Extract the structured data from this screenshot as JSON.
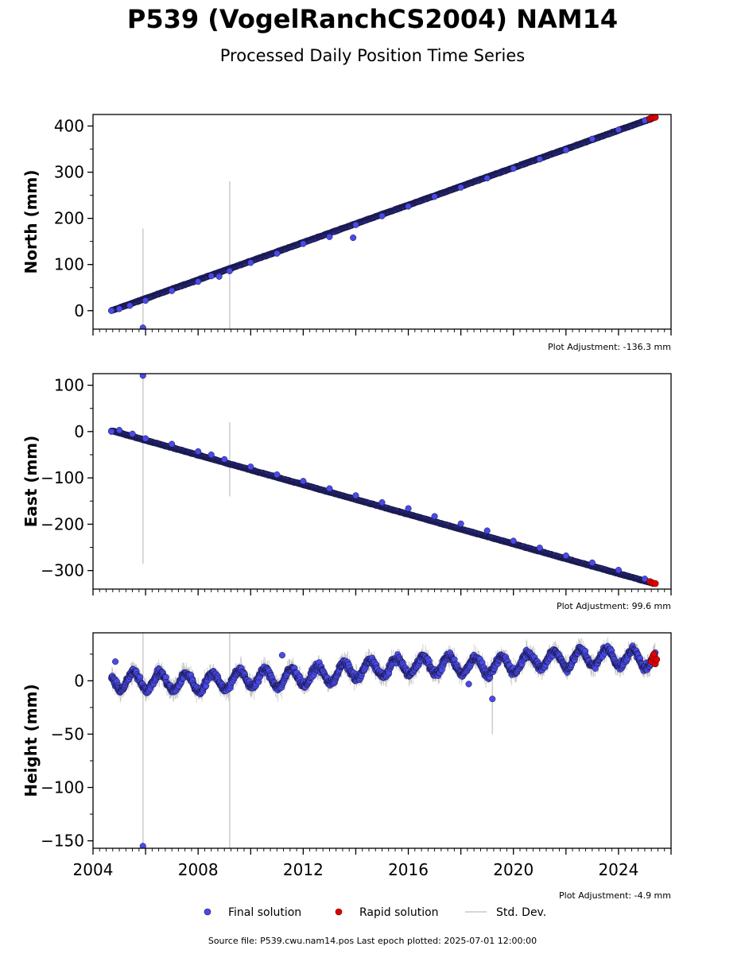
{
  "figure": {
    "title": "P539 (VogelRanchCS2004) NAM14",
    "subtitle": "Processed Daily Position Time Series",
    "source_note": "Source file: P539.cwu.nam14.pos  Last epoch plotted: 2025-07-01 12:00:00"
  },
  "legend": {
    "final": "Final solution",
    "rapid": "Rapid solution",
    "stddev": "Std. Dev."
  },
  "colors": {
    "final": "#4a4ae8",
    "final_edge": "#14143c",
    "rapid": "#e00000",
    "stddev": "#b8b8b8",
    "axis": "#000000"
  },
  "chart_data": [
    {
      "type": "scatter",
      "ylabel": "North (mm)",
      "adjustment": "Plot Adjustment: -136.3 mm",
      "xlim": [
        2004.0,
        2026.0
      ],
      "ylim": [
        -40,
        425
      ],
      "y_ticks": [
        0,
        100,
        200,
        300,
        400
      ],
      "y_tick_labels": [
        "0",
        "100",
        "200",
        "300",
        "400"
      ],
      "trend": {
        "t0": 2004.7,
        "y0": 0,
        "t1": 2025.35,
        "y1": 418
      },
      "final_points": [
        {
          "x": 2004.7,
          "y": 0
        },
        {
          "x": 2005.0,
          "y": 4
        },
        {
          "x": 2005.4,
          "y": 11
        },
        {
          "x": 2005.9,
          "y": -37
        },
        {
          "x": 2006.0,
          "y": 22
        },
        {
          "x": 2007.0,
          "y": 43
        },
        {
          "x": 2008.0,
          "y": 63
        },
        {
          "x": 2008.5,
          "y": 75
        },
        {
          "x": 2008.8,
          "y": 74
        },
        {
          "x": 2009.2,
          "y": 86
        },
        {
          "x": 2010.0,
          "y": 104
        },
        {
          "x": 2011.0,
          "y": 124
        },
        {
          "x": 2012.0,
          "y": 145
        },
        {
          "x": 2013.0,
          "y": 160
        },
        {
          "x": 2013.9,
          "y": 158
        },
        {
          "x": 2014.0,
          "y": 186
        },
        {
          "x": 2015.0,
          "y": 205
        },
        {
          "x": 2016.0,
          "y": 226
        },
        {
          "x": 2017.0,
          "y": 247
        },
        {
          "x": 2018.0,
          "y": 267
        },
        {
          "x": 2019.0,
          "y": 287
        },
        {
          "x": 2020.0,
          "y": 308
        },
        {
          "x": 2021.0,
          "y": 328
        },
        {
          "x": 2022.0,
          "y": 348
        },
        {
          "x": 2023.0,
          "y": 372
        },
        {
          "x": 2024.0,
          "y": 392
        },
        {
          "x": 2025.0,
          "y": 412
        }
      ],
      "rapid_points": [
        {
          "x": 2025.2,
          "y": 416
        },
        {
          "x": 2025.3,
          "y": 418
        },
        {
          "x": 2025.4,
          "y": 419
        }
      ],
      "error_spikes": [
        {
          "x": 2005.9,
          "low": -37,
          "high": 178
        },
        {
          "x": 2009.2,
          "low": -40,
          "high": 280
        }
      ]
    },
    {
      "type": "scatter",
      "ylabel": "East (mm)",
      "adjustment": "Plot Adjustment: 99.6 mm",
      "xlim": [
        2004.0,
        2026.0
      ],
      "ylim": [
        -340,
        125
      ],
      "y_ticks": [
        100,
        0,
        -100,
        -200,
        -300
      ],
      "y_tick_labels": [
        "100",
        "0",
        "−100",
        "−200",
        "−300"
      ],
      "trend": {
        "t0": 2004.7,
        "y0": 2,
        "t1": 2025.35,
        "y1": -328
      },
      "final_points": [
        {
          "x": 2004.7,
          "y": 0
        },
        {
          "x": 2005.0,
          "y": 3
        },
        {
          "x": 2005.5,
          "y": -5
        },
        {
          "x": 2005.9,
          "y": 121
        },
        {
          "x": 2006.0,
          "y": -15
        },
        {
          "x": 2007.0,
          "y": -27
        },
        {
          "x": 2008.0,
          "y": -43
        },
        {
          "x": 2008.5,
          "y": -50
        },
        {
          "x": 2009.0,
          "y": -60
        },
        {
          "x": 2010.0,
          "y": -76
        },
        {
          "x": 2011.0,
          "y": -93
        },
        {
          "x": 2012.0,
          "y": -107
        },
        {
          "x": 2013.0,
          "y": -123
        },
        {
          "x": 2014.0,
          "y": -138
        },
        {
          "x": 2015.0,
          "y": -153
        },
        {
          "x": 2016.0,
          "y": -166
        },
        {
          "x": 2017.0,
          "y": -183
        },
        {
          "x": 2018.0,
          "y": -199
        },
        {
          "x": 2019.0,
          "y": -214
        },
        {
          "x": 2020.0,
          "y": -236
        },
        {
          "x": 2021.0,
          "y": -251
        },
        {
          "x": 2022.0,
          "y": -268
        },
        {
          "x": 2023.0,
          "y": -283
        },
        {
          "x": 2024.0,
          "y": -299
        },
        {
          "x": 2025.0,
          "y": -318
        }
      ],
      "rapid_points": [
        {
          "x": 2025.2,
          "y": -324
        },
        {
          "x": 2025.3,
          "y": -327
        },
        {
          "x": 2025.4,
          "y": -328
        }
      ],
      "error_spikes": [
        {
          "x": 2005.9,
          "low": -285,
          "high": 121
        },
        {
          "x": 2009.2,
          "low": -140,
          "high": 20
        }
      ]
    },
    {
      "type": "scatter",
      "ylabel": "Height (mm)",
      "adjustment": "Plot Adjustment: -4.9 mm",
      "xlim": [
        2004.0,
        2026.0
      ],
      "ylim": [
        -157,
        45
      ],
      "y_ticks": [
        0,
        -50,
        -100,
        -150
      ],
      "y_tick_labels": [
        "0",
        "−50",
        "−100",
        "−150"
      ],
      "x_ticks": [
        2004,
        2008,
        2012,
        2016,
        2020,
        2024
      ],
      "x_tick_labels": [
        "2004",
        "2008",
        "2012",
        "2016",
        "2020",
        "2024"
      ],
      "annual_amplitude": 8,
      "level_points": [
        {
          "x": 2004.7,
          "y": 0
        },
        {
          "x": 2006.0,
          "y": 0
        },
        {
          "x": 2008.0,
          "y": -2
        },
        {
          "x": 2009.0,
          "y": 0
        },
        {
          "x": 2010.0,
          "y": 3
        },
        {
          "x": 2011.0,
          "y": 2
        },
        {
          "x": 2012.0,
          "y": 4
        },
        {
          "x": 2013.0,
          "y": 6
        },
        {
          "x": 2014.0,
          "y": 10
        },
        {
          "x": 2015.0,
          "y": 12
        },
        {
          "x": 2016.0,
          "y": 14
        },
        {
          "x": 2017.0,
          "y": 15
        },
        {
          "x": 2018.0,
          "y": 15
        },
        {
          "x": 2019.0,
          "y": 13
        },
        {
          "x": 2020.0,
          "y": 16
        },
        {
          "x": 2021.0,
          "y": 20
        },
        {
          "x": 2022.0,
          "y": 20
        },
        {
          "x": 2023.0,
          "y": 22
        },
        {
          "x": 2024.0,
          "y": 22
        },
        {
          "x": 2025.0,
          "y": 20
        },
        {
          "x": 2025.4,
          "y": 21
        }
      ],
      "outliers": [
        {
          "x": 2004.85,
          "y": 18
        },
        {
          "x": 2011.2,
          "y": 24
        },
        {
          "x": 2018.3,
          "y": -3
        },
        {
          "x": 2019.2,
          "y": -17
        },
        {
          "x": 2005.9,
          "y": -155
        }
      ],
      "rapid_points": [
        {
          "x": 2025.25,
          "y": 18
        },
        {
          "x": 2025.3,
          "y": 22
        },
        {
          "x": 2025.35,
          "y": 25
        },
        {
          "x": 2025.4,
          "y": 16
        },
        {
          "x": 2025.45,
          "y": 20
        }
      ],
      "error_spikes": [
        {
          "x": 2005.9,
          "low": -155,
          "high": 45
        },
        {
          "x": 2009.2,
          "low": -157,
          "high": 45
        },
        {
          "x": 2019.2,
          "low": -50,
          "high": 5
        }
      ]
    }
  ]
}
